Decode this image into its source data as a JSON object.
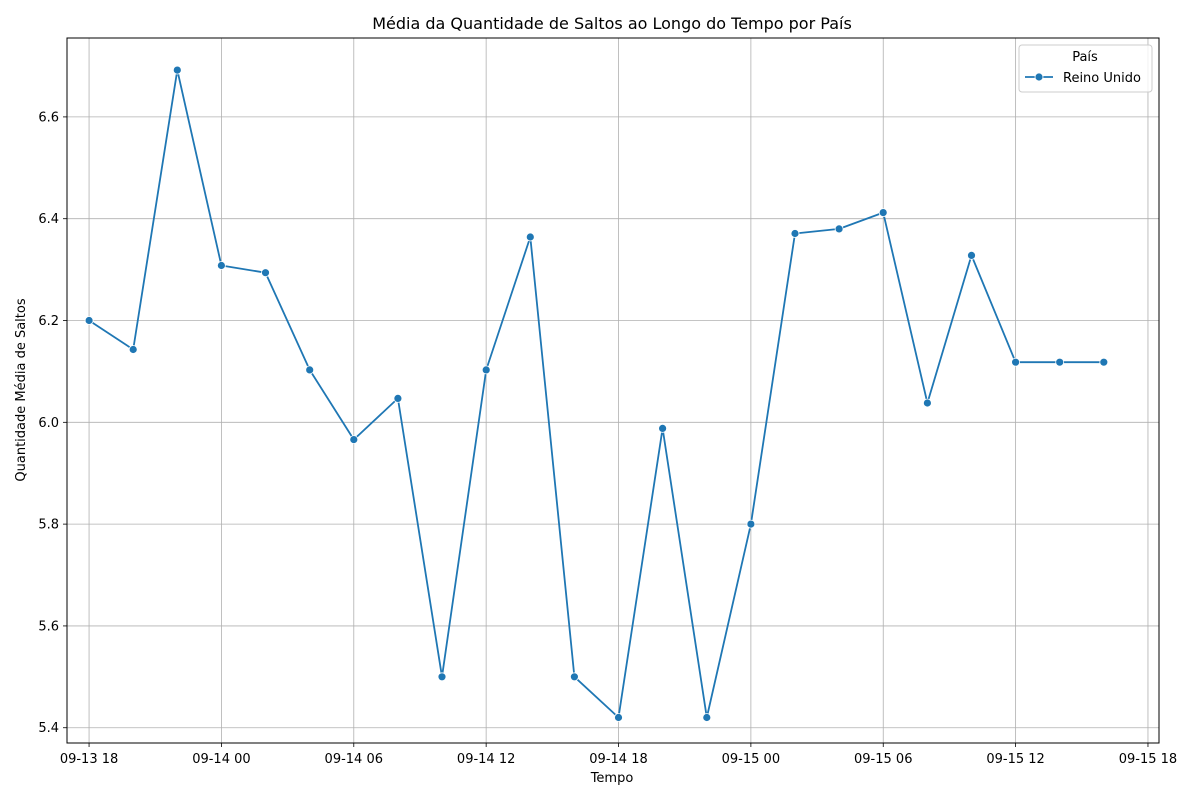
{
  "chart_data": {
    "type": "line",
    "title": "Média da Quantidade de Saltos ao Longo do Tempo por País",
    "xlabel": "Tempo",
    "ylabel": "Quantidade Média de Saltos",
    "x_ticks": [
      "09-13 18",
      "09-14 00",
      "09-14 06",
      "09-14 12",
      "09-14 18",
      "09-15 00",
      "09-15 06",
      "09-15 12",
      "09-15 18"
    ],
    "y_ticks": [
      "5.4",
      "5.6",
      "5.8",
      "6.0",
      "6.2",
      "6.4",
      "6.6"
    ],
    "xlim": [
      "2023-09-13 17:00",
      "2023-09-15 18:30"
    ],
    "ylim": [
      5.37,
      6.755
    ],
    "grid": true,
    "legend": {
      "title": "País",
      "position": "top-right"
    },
    "series": [
      {
        "name": "Reino Unido",
        "color": "#1f77b4",
        "marker": "circle",
        "x": [
          "2023-09-13 18:00",
          "2023-09-13 20:00",
          "2023-09-13 22:00",
          "2023-09-14 00:00",
          "2023-09-14 02:00",
          "2023-09-14 04:00",
          "2023-09-14 06:00",
          "2023-09-14 08:00",
          "2023-09-14 10:00",
          "2023-09-14 12:00",
          "2023-09-14 14:00",
          "2023-09-14 16:00",
          "2023-09-14 18:00",
          "2023-09-14 20:00",
          "2023-09-14 22:00",
          "2023-09-15 00:00",
          "2023-09-15 02:00",
          "2023-09-15 04:00",
          "2023-09-15 06:00",
          "2023-09-15 08:00",
          "2023-09-15 10:00",
          "2023-09-15 12:00",
          "2023-09-15 14:00",
          "2023-09-15 16:00"
        ],
        "values": [
          6.2,
          6.143,
          6.692,
          6.308,
          6.294,
          6.103,
          5.966,
          6.047,
          5.5,
          6.103,
          6.364,
          5.5,
          5.42,
          5.988,
          5.42,
          5.8,
          6.371,
          6.38,
          6.412,
          6.038,
          6.328,
          6.118,
          6.118,
          6.118
        ]
      }
    ]
  }
}
